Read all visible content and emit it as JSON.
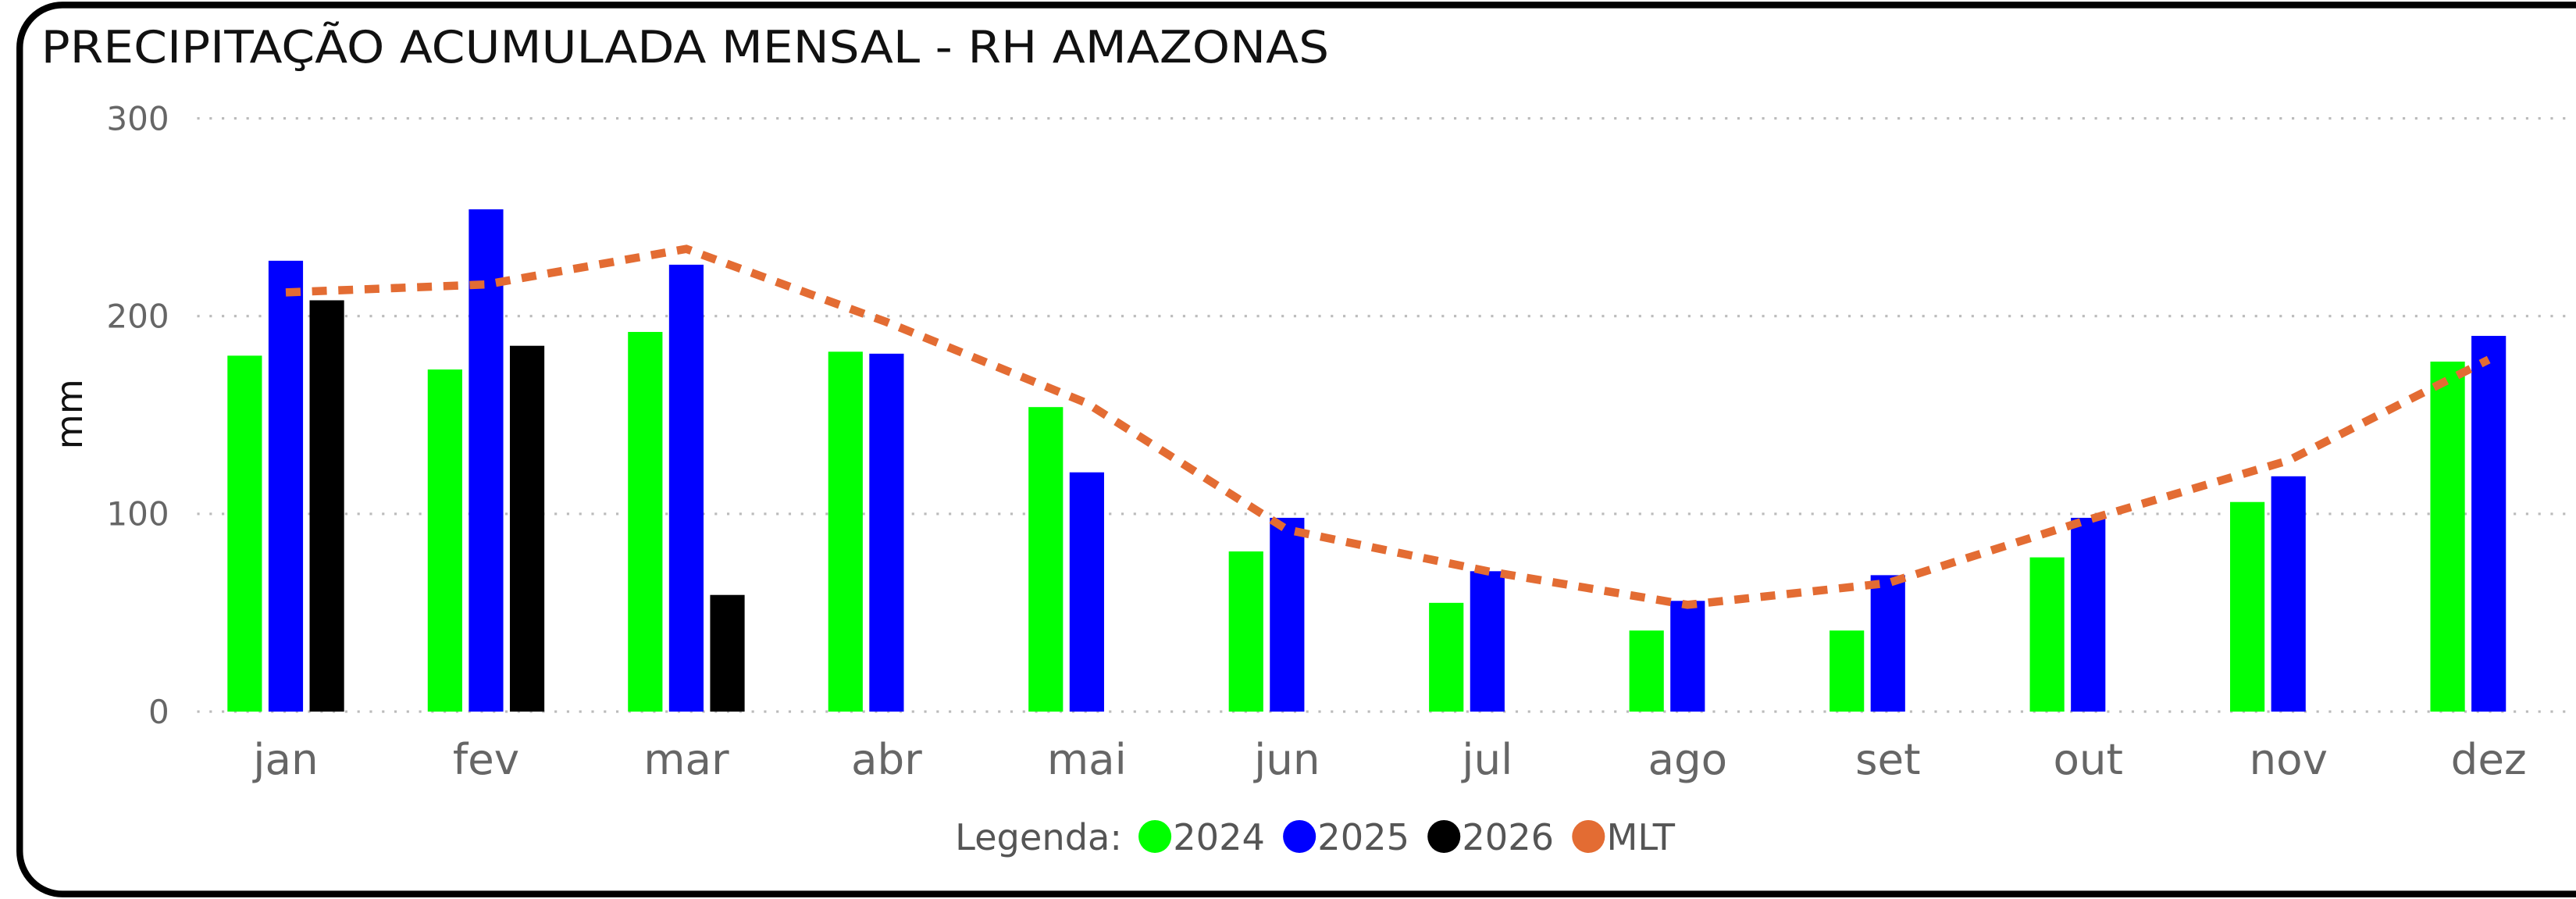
{
  "chart_data": {
    "type": "bar",
    "title": "PRECIPITAÇÃO ACUMULADA MENSAL - RH AMAZONAS",
    "y_label": "mm",
    "legend_title": "Legenda:",
    "categories": [
      "jan",
      "fev",
      "mar",
      "abr",
      "mai",
      "jun",
      "jul",
      "ago",
      "set",
      "out",
      "nov",
      "dez"
    ],
    "series": [
      {
        "name": "2024",
        "color": "#00ff00",
        "type": "bar",
        "values": [
          180,
          173,
          192,
          182,
          154,
          81,
          55,
          41,
          41,
          78,
          106,
          177
        ]
      },
      {
        "name": "2025",
        "color": "#0000ff",
        "type": "bar",
        "values": [
          228,
          254,
          226,
          181,
          121,
          98,
          71,
          56,
          69,
          98,
          119,
          190
        ]
      },
      {
        "name": "2026",
        "color": "#000000",
        "type": "bar",
        "values": [
          208,
          185,
          59,
          null,
          null,
          null,
          null,
          null,
          null,
          null,
          null,
          null
        ]
      },
      {
        "name": "MLT",
        "color": "#e36c33",
        "type": "line",
        "values": [
          212,
          216,
          234,
          197,
          156,
          92,
          71,
          54,
          65,
          97,
          127,
          178
        ]
      }
    ],
    "ylim": [
      0,
      300
    ],
    "yticks": [
      0,
      100,
      200,
      300
    ],
    "grid": true
  }
}
